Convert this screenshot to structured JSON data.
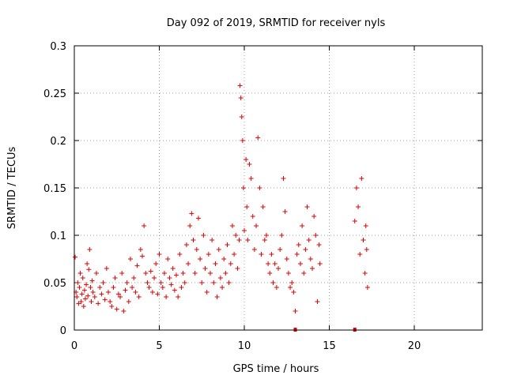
{
  "chart_data": {
    "type": "scatter",
    "title": "Day 092 of 2019, SRMTID for receiver nyls",
    "xlabel": "GPS time / hours",
    "ylabel": "SRMTID / TECUs",
    "xlim": [
      0,
      24
    ],
    "ylim": [
      0,
      0.3
    ],
    "x_ticks": [
      0,
      5,
      10,
      15,
      20
    ],
    "x_tick_labels": [
      "0",
      "5",
      "10",
      "15",
      "20"
    ],
    "y_ticks": [
      0,
      0.05,
      0.1,
      0.15,
      0.2,
      0.25,
      0.3
    ],
    "y_tick_labels": [
      "0",
      "0.05",
      "0.1",
      "0.15",
      "0.2",
      "0.25",
      "0.3"
    ],
    "grid": true,
    "marker": "plus",
    "color": "#e00000",
    "series": [
      {
        "points": [
          [
            0.05,
            0.077
          ],
          [
            0.1,
            0.04
          ],
          [
            0.15,
            0.035
          ],
          [
            0.2,
            0.05
          ],
          [
            0.25,
            0.028
          ],
          [
            0.3,
            0.045
          ],
          [
            0.35,
            0.06
          ],
          [
            0.4,
            0.03
          ],
          [
            0.45,
            0.038
          ],
          [
            0.5,
            0.055
          ],
          [
            0.55,
            0.025
          ],
          [
            0.6,
            0.042
          ],
          [
            0.65,
            0.033
          ],
          [
            0.7,
            0.048
          ],
          [
            0.75,
            0.07
          ],
          [
            0.8,
            0.036
          ],
          [
            0.85,
            0.064
          ],
          [
            0.9,
            0.085
          ],
          [
            0.95,
            0.045
          ],
          [
            1.0,
            0.03
          ],
          [
            1.05,
            0.052
          ],
          [
            1.1,
            0.04
          ],
          [
            1.2,
            0.035
          ],
          [
            1.3,
            0.06
          ],
          [
            1.4,
            0.028
          ],
          [
            1.5,
            0.045
          ],
          [
            1.6,
            0.038
          ],
          [
            1.7,
            0.05
          ],
          [
            1.8,
            0.032
          ],
          [
            1.9,
            0.065
          ],
          [
            2.0,
            0.04
          ],
          [
            2.1,
            0.03
          ],
          [
            2.2,
            0.025
          ],
          [
            2.3,
            0.045
          ],
          [
            2.4,
            0.055
          ],
          [
            2.5,
            0.022
          ],
          [
            2.6,
            0.038
          ],
          [
            2.7,
            0.035
          ],
          [
            2.8,
            0.06
          ],
          [
            2.9,
            0.02
          ],
          [
            3.0,
            0.042
          ],
          [
            3.1,
            0.05
          ],
          [
            3.2,
            0.03
          ],
          [
            3.3,
            0.075
          ],
          [
            3.4,
            0.045
          ],
          [
            3.5,
            0.055
          ],
          [
            3.6,
            0.04
          ],
          [
            3.7,
            0.068
          ],
          [
            3.8,
            0.035
          ],
          [
            3.9,
            0.085
          ],
          [
            4.0,
            0.078
          ],
          [
            4.1,
            0.11
          ],
          [
            4.2,
            0.06
          ],
          [
            4.3,
            0.05
          ],
          [
            4.4,
            0.045
          ],
          [
            4.5,
            0.062
          ],
          [
            4.6,
            0.04
          ],
          [
            4.7,
            0.055
          ],
          [
            4.8,
            0.07
          ],
          [
            4.9,
            0.038
          ],
          [
            5.0,
            0.08
          ],
          [
            5.1,
            0.05
          ],
          [
            5.2,
            0.045
          ],
          [
            5.3,
            0.06
          ],
          [
            5.4,
            0.035
          ],
          [
            5.5,
            0.075
          ],
          [
            5.6,
            0.055
          ],
          [
            5.7,
            0.048
          ],
          [
            5.8,
            0.065
          ],
          [
            5.9,
            0.042
          ],
          [
            6.0,
            0.058
          ],
          [
            6.1,
            0.035
          ],
          [
            6.2,
            0.08
          ],
          [
            6.3,
            0.045
          ],
          [
            6.4,
            0.06
          ],
          [
            6.5,
            0.05
          ],
          [
            6.6,
            0.09
          ],
          [
            6.7,
            0.07
          ],
          [
            6.8,
            0.11
          ],
          [
            6.9,
            0.123
          ],
          [
            7.0,
            0.095
          ],
          [
            7.1,
            0.06
          ],
          [
            7.2,
            0.085
          ],
          [
            7.3,
            0.118
          ],
          [
            7.4,
            0.075
          ],
          [
            7.5,
            0.05
          ],
          [
            7.6,
            0.1
          ],
          [
            7.7,
            0.065
          ],
          [
            7.8,
            0.04
          ],
          [
            7.9,
            0.08
          ],
          [
            8.0,
            0.06
          ],
          [
            8.1,
            0.095
          ],
          [
            8.2,
            0.05
          ],
          [
            8.3,
            0.07
          ],
          [
            8.4,
            0.035
          ],
          [
            8.5,
            0.085
          ],
          [
            8.6,
            0.055
          ],
          [
            8.7,
            0.045
          ],
          [
            8.8,
            0.075
          ],
          [
            8.9,
            0.06
          ],
          [
            9.0,
            0.09
          ],
          [
            9.1,
            0.05
          ],
          [
            9.2,
            0.07
          ],
          [
            9.3,
            0.11
          ],
          [
            9.4,
            0.08
          ],
          [
            9.5,
            0.1
          ],
          [
            9.6,
            0.065
          ],
          [
            9.7,
            0.095
          ],
          [
            9.75,
            0.258
          ],
          [
            9.8,
            0.245
          ],
          [
            9.85,
            0.225
          ],
          [
            9.9,
            0.2
          ],
          [
            9.95,
            0.15
          ],
          [
            10.0,
            0.105
          ],
          [
            10.1,
            0.18
          ],
          [
            10.15,
            0.13
          ],
          [
            10.2,
            0.095
          ],
          [
            10.3,
            0.175
          ],
          [
            10.4,
            0.16
          ],
          [
            10.5,
            0.12
          ],
          [
            10.6,
            0.085
          ],
          [
            10.7,
            0.11
          ],
          [
            10.8,
            0.203
          ],
          [
            10.9,
            0.15
          ],
          [
            11.0,
            0.08
          ],
          [
            11.1,
            0.13
          ],
          [
            11.2,
            0.095
          ],
          [
            11.3,
            0.1
          ],
          [
            11.4,
            0.07
          ],
          [
            11.5,
            0.06
          ],
          [
            11.6,
            0.08
          ],
          [
            11.7,
            0.05
          ],
          [
            11.8,
            0.07
          ],
          [
            11.9,
            0.045
          ],
          [
            12.0,
            0.065
          ],
          [
            12.1,
            0.085
          ],
          [
            12.2,
            0.1
          ],
          [
            12.3,
            0.16
          ],
          [
            12.4,
            0.125
          ],
          [
            12.5,
            0.075
          ],
          [
            12.6,
            0.06
          ],
          [
            12.7,
            0.045
          ],
          [
            12.8,
            0.05
          ],
          [
            12.9,
            0.04
          ],
          [
            13.0,
            0.02
          ],
          [
            13.1,
            0.08
          ],
          [
            13.2,
            0.09
          ],
          [
            13.3,
            0.07
          ],
          [
            13.4,
            0.11
          ],
          [
            13.5,
            0.06
          ],
          [
            13.6,
            0.085
          ],
          [
            13.7,
            0.13
          ],
          [
            13.8,
            0.095
          ],
          [
            13.9,
            0.075
          ],
          [
            14.0,
            0.065
          ],
          [
            14.1,
            0.12
          ],
          [
            14.2,
            0.1
          ],
          [
            14.3,
            0.03
          ],
          [
            14.4,
            0.09
          ],
          [
            14.45,
            0.07
          ],
          [
            16.5,
            0.115
          ],
          [
            16.6,
            0.15
          ],
          [
            16.7,
            0.13
          ],
          [
            16.8,
            0.08
          ],
          [
            16.9,
            0.16
          ],
          [
            17.0,
            0.095
          ],
          [
            17.1,
            0.06
          ],
          [
            17.15,
            0.11
          ],
          [
            17.2,
            0.085
          ],
          [
            17.25,
            0.045
          ]
        ]
      }
    ],
    "zero_markers": [
      13.0,
      16.5
    ]
  }
}
